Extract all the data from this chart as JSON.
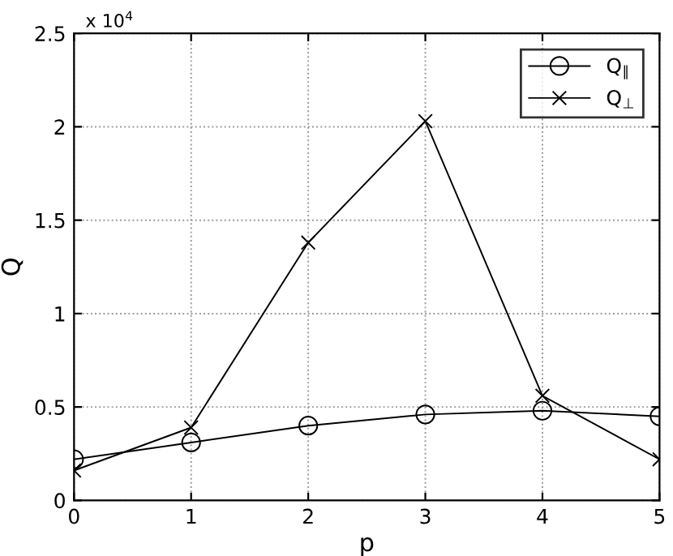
{
  "chart_data": {
    "type": "line",
    "xlabel": "p",
    "ylabel": "Q",
    "x": [
      0,
      1,
      2,
      3,
      4,
      5
    ],
    "series": [
      {
        "name": "Q$_{∥}$",
        "color": "#000000",
        "marker": "circle",
        "values": [
          0.22,
          0.31,
          0.4,
          0.46,
          0.48,
          0.45
        ]
      },
      {
        "name": "Q$_{⊥}$",
        "color": "#000000",
        "marker": "cross",
        "values": [
          0.16,
          0.39,
          1.38,
          2.03,
          0.56,
          0.22
        ]
      }
    ],
    "xlim": [
      0,
      5
    ],
    "xticks": [
      0,
      1,
      2,
      3,
      4,
      5
    ],
    "ylim": [
      0,
      2.5
    ],
    "yticks": [
      0,
      0.5,
      1,
      1.5,
      2,
      2.5
    ],
    "annotations": [
      "x 10$^{4}$"
    ],
    "grid": true,
    "legend": "top right",
    "line_style": "solid"
  }
}
